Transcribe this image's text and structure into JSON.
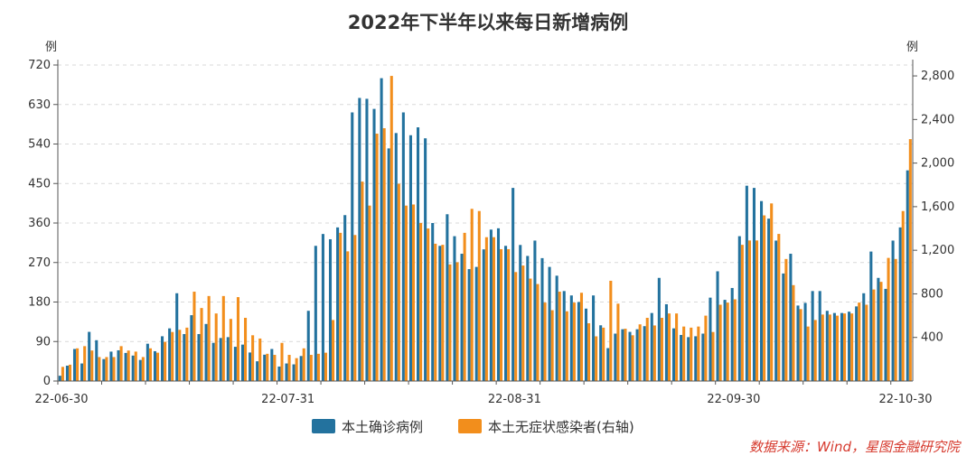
{
  "chart_data": {
    "type": "bar",
    "title": "2022年下半年以来每日新增病例",
    "left_unit": "例",
    "right_unit": "例",
    "x_tick_labels": [
      "22-06-30",
      "22-07-31",
      "22-08-31",
      "22-09-30",
      "22-10-30"
    ],
    "left_axis": {
      "min": 0,
      "max": 720,
      "ticks": [
        0,
        90,
        180,
        270,
        360,
        450,
        540,
        630,
        720
      ]
    },
    "right_axis": {
      "min": 0,
      "max": 2900,
      "ticks": [
        "400",
        "800",
        "1,200",
        "1,600",
        "2,000",
        "2,400",
        "2,800"
      ],
      "tick_values": [
        400,
        800,
        1200,
        1600,
        2000,
        2400,
        2800
      ]
    },
    "grid": true,
    "legend_position": "bottom",
    "source": "数据来源：Wind，星图金融研究院",
    "colors": {
      "confirmed": "#23729e",
      "asymptomatic": "#f28e1c"
    },
    "series": [
      {
        "name": "本土确诊病例",
        "axis": "left",
        "values": [
          12,
          35,
          73,
          40,
          112,
          93,
          50,
          67,
          70,
          64,
          58,
          48,
          85,
          68,
          102,
          120,
          200,
          107,
          150,
          107,
          130,
          87,
          98,
          100,
          78,
          83,
          65,
          45,
          60,
          73,
          33,
          40,
          38,
          57,
          160,
          308,
          335,
          323,
          350,
          378,
          612,
          645,
          643,
          620,
          690,
          530,
          565,
          612,
          560,
          578,
          553,
          360,
          308,
          380,
          330,
          290,
          255,
          260,
          300,
          345,
          348,
          308,
          440,
          310,
          285,
          320,
          280,
          260,
          240,
          205,
          195,
          180,
          165,
          195,
          127,
          75,
          108,
          118,
          112,
          118,
          125,
          155,
          235,
          175,
          120,
          105,
          100,
          102,
          108,
          190,
          250,
          185,
          212,
          330,
          445,
          440,
          410,
          370,
          320,
          245,
          290,
          172,
          178,
          205,
          205,
          160,
          155,
          155,
          158,
          170,
          200,
          295,
          235,
          210,
          320,
          350,
          480
        ],
        "scale_hint": "left"
      },
      {
        "name": "本土无症状感染者(右轴)",
        "axis": "right",
        "values": [
          130,
          150,
          300,
          320,
          280,
          220,
          220,
          220,
          320,
          280,
          270,
          220,
          300,
          260,
          360,
          450,
          470,
          490,
          820,
          670,
          780,
          620,
          780,
          570,
          770,
          580,
          420,
          390,
          250,
          240,
          350,
          240,
          210,
          300,
          240,
          250,
          260,
          560,
          1360,
          1190,
          1340,
          1830,
          1610,
          2270,
          2320,
          2800,
          1810,
          1610,
          1620,
          1450,
          1400,
          1260,
          1250,
          1070,
          1090,
          1360,
          1580,
          1560,
          1320,
          1320,
          1210,
          1210,
          1000,
          1060,
          940,
          890,
          720,
          650,
          820,
          640,
          720,
          810,
          530,
          410,
          490,
          920,
          710,
          480,
          420,
          520,
          580,
          510,
          580,
          620,
          620,
          500,
          490,
          500,
          600,
          450,
          700,
          720,
          750,
          1250,
          1290,
          1290,
          1520,
          1630,
          1350,
          1120,
          880,
          660,
          500,
          560,
          610,
          610,
          600,
          620,
          620,
          720,
          700,
          840,
          910,
          1130,
          1120,
          1560,
          2220
        ],
        "scale_hint": "right"
      }
    ]
  }
}
